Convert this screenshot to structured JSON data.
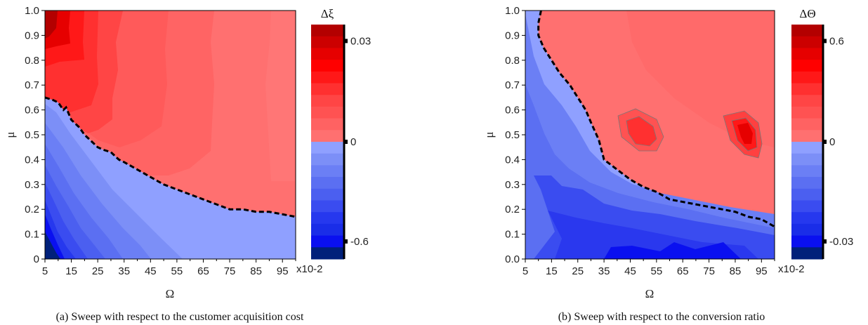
{
  "figure": {
    "caption_a": "(a) Sweep with respect to the customer acquisition cost",
    "caption_b": "(b) Sweep with respect to the conversion ratio"
  },
  "colors": {
    "red_levels": [
      "#ff7070",
      "#ff6262",
      "#ff5252",
      "#ff4545",
      "#ff3030",
      "#ff1818",
      "#ff0000",
      "#e60000",
      "#cc0000",
      "#b30000"
    ],
    "blue_levels": [
      "#8fa0ff",
      "#7c8ff7",
      "#6b7ff5",
      "#5b6ff2",
      "#4b5ff0",
      "#3a4cf0",
      "#2638ee",
      "#1a2de8",
      "#0a10f0",
      "#00207a"
    ],
    "boundary": "#000000",
    "contour_line": "#555555"
  },
  "chart_data": [
    {
      "type": "heatmap",
      "title": "",
      "xlabel": "Ω",
      "ylabel": "μ",
      "x_multiplier": "x10-2",
      "xlim": [
        5,
        100
      ],
      "ylim": [
        0,
        1
      ],
      "x_ticks": [
        "5",
        "15",
        "25",
        "35",
        "45",
        "55",
        "65",
        "75",
        "85",
        "95"
      ],
      "y_ticks": [
        "0",
        "0.1",
        "0.2",
        "0.3",
        "0.4",
        "0.5",
        "0.6",
        "0.7",
        "0.8",
        "0.9",
        "1.0"
      ],
      "colorbar": {
        "title": "Δξ",
        "ticks": [
          {
            "label": "0.03",
            "value": 0.03
          },
          {
            "label": "0",
            "value": 0
          },
          {
            "label": "-0.6",
            "value": -0.6
          }
        ]
      },
      "zero_boundary": {
        "x": [
          5,
          8,
          10,
          12,
          13,
          15,
          18,
          20,
          22,
          24,
          25,
          27,
          30,
          33,
          35,
          40,
          45,
          50,
          55,
          60,
          65,
          70,
          75,
          80,
          85,
          90,
          95,
          100
        ],
        "y": [
          0.65,
          0.64,
          0.63,
          0.6,
          0.61,
          0.56,
          0.53,
          0.5,
          0.48,
          0.46,
          0.45,
          0.44,
          0.43,
          0.4,
          0.39,
          0.36,
          0.33,
          0.3,
          0.28,
          0.26,
          0.24,
          0.22,
          0.2,
          0.2,
          0.19,
          0.19,
          0.18,
          0.17
        ]
      }
    },
    {
      "type": "heatmap",
      "title": "",
      "xlabel": "Ω",
      "ylabel": "μ",
      "x_multiplier": "x10-2",
      "xlim": [
        5,
        100
      ],
      "ylim": [
        0,
        1
      ],
      "x_ticks": [
        "5",
        "15",
        "25",
        "35",
        "45",
        "55",
        "65",
        "75",
        "85",
        "95"
      ],
      "y_ticks": [
        "0.0",
        "0.1",
        "0.2",
        "0.3",
        "0.4",
        "0.5",
        "0.6",
        "0.7",
        "0.8",
        "0.9",
        "1.0"
      ],
      "colorbar": {
        "title": "ΔΘ",
        "ticks": [
          {
            "label": "0.6",
            "value": 0.6
          },
          {
            "label": "0",
            "value": 0
          },
          {
            "label": "-0.03",
            "value": -0.03
          }
        ]
      },
      "zero_boundary": {
        "x": [
          11,
          10,
          10,
          12,
          15,
          18,
          22,
          25,
          28,
          30,
          33,
          35,
          40,
          45,
          50,
          55,
          60,
          65,
          70,
          75,
          80,
          85,
          90,
          95,
          100
        ],
        "y": [
          1.0,
          0.95,
          0.9,
          0.85,
          0.8,
          0.75,
          0.7,
          0.65,
          0.6,
          0.55,
          0.48,
          0.4,
          0.36,
          0.32,
          0.29,
          0.27,
          0.24,
          0.23,
          0.22,
          0.21,
          0.2,
          0.19,
          0.17,
          0.16,
          0.13
        ]
      },
      "hotspots": [
        {
          "x": 50,
          "y": 0.51,
          "label": "local maximum"
        },
        {
          "x": 90,
          "y": 0.5,
          "label": "local maximum"
        }
      ]
    }
  ]
}
